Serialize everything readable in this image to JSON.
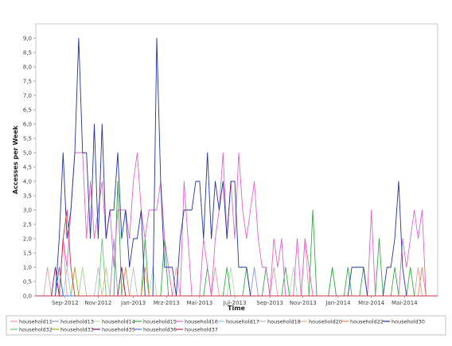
{
  "chart_data": {
    "type": "line",
    "title": "",
    "xlabel": "Time",
    "ylabel": "Accesses per Week",
    "ylim": [
      0,
      9.5
    ],
    "grid": false,
    "legend_position": "bottom",
    "y_ticks": [
      "0,0",
      "0,5",
      "1,0",
      "1,5",
      "2,0",
      "2,5",
      "3,0",
      "3,5",
      "4,0",
      "4,5",
      "5,0",
      "5,5",
      "6,0",
      "6,5",
      "7,0",
      "7,5",
      "8,0",
      "8,5",
      "9,0"
    ],
    "x_ticks": [
      {
        "label": "Sep-2012",
        "x": 2.5
      },
      {
        "label": "Nov-2012",
        "x": 11
      },
      {
        "label": "Jan-2013",
        "x": 20
      },
      {
        "label": "Mrz-2013",
        "x": 28.5
      },
      {
        "label": "Mai-2013",
        "x": 37
      },
      {
        "label": "Jul-2013",
        "x": 46
      },
      {
        "label": "Sep-2013",
        "x": 55
      },
      {
        "label": "Nov-2013",
        "x": 63.5
      },
      {
        "label": "Jan-2014",
        "x": 72.5
      },
      {
        "label": "Mrz-2014",
        "x": 81
      },
      {
        "label": "Mai-2014",
        "x": 89.5
      }
    ],
    "x_range": [
      -5,
      98
    ],
    "series": [
      {
        "name": "household11",
        "color": "#e89aa6",
        "points": [
          [
            -5,
            0
          ],
          [
            -3,
            0
          ],
          [
            -2,
            1
          ],
          [
            -1,
            0
          ],
          [
            1,
            0
          ],
          [
            2,
            2
          ],
          [
            3,
            0
          ],
          [
            6,
            0
          ],
          [
            7,
            1
          ],
          [
            8,
            0
          ],
          [
            30,
            0
          ],
          [
            31,
            1
          ],
          [
            32,
            0
          ],
          [
            40,
            0
          ],
          [
            41,
            1
          ],
          [
            42,
            0
          ],
          [
            55,
            0
          ],
          [
            56,
            1
          ],
          [
            57,
            0
          ],
          [
            63,
            0
          ],
          [
            64,
            2
          ],
          [
            65,
            0
          ],
          [
            92,
            0
          ],
          [
            93,
            1
          ],
          [
            94,
            0
          ],
          [
            98,
            0
          ]
        ]
      },
      {
        "name": "household13",
        "color": "#8899cc",
        "points": [
          [
            -5,
            0
          ],
          [
            0,
            0
          ],
          [
            1,
            1
          ],
          [
            2,
            0
          ],
          [
            14,
            0
          ],
          [
            15,
            2
          ],
          [
            16,
            0
          ],
          [
            50,
            0
          ],
          [
            51,
            1
          ],
          [
            52,
            0
          ],
          [
            98,
            0
          ]
        ]
      },
      {
        "name": "household14",
        "color": "#aaddaa",
        "points": [
          [
            -5,
            0
          ],
          [
            6,
            0
          ],
          [
            7,
            1
          ],
          [
            8,
            0
          ],
          [
            24,
            0
          ],
          [
            25,
            1
          ],
          [
            26,
            0
          ],
          [
            44,
            0
          ],
          [
            45,
            1
          ],
          [
            46,
            0
          ],
          [
            60,
            0
          ],
          [
            61,
            1
          ],
          [
            62,
            0
          ],
          [
            70,
            0
          ],
          [
            71,
            1
          ],
          [
            72,
            0
          ],
          [
            98,
            0
          ]
        ]
      },
      {
        "name": "household15",
        "color": "#33aa44",
        "points": [
          [
            -5,
            0
          ],
          [
            15,
            0
          ],
          [
            16,
            4
          ],
          [
            17,
            0
          ],
          [
            22,
            0
          ],
          [
            23,
            2
          ],
          [
            24,
            0
          ],
          [
            27,
            0
          ],
          [
            28,
            2
          ],
          [
            29,
            0
          ],
          [
            38,
            0
          ],
          [
            39,
            1
          ],
          [
            40,
            0
          ],
          [
            43,
            0
          ],
          [
            44,
            1
          ],
          [
            45,
            0
          ],
          [
            48,
            0
          ],
          [
            49,
            1
          ],
          [
            50,
            0
          ],
          [
            53,
            0
          ],
          [
            54,
            1
          ],
          [
            55,
            0
          ],
          [
            58,
            0
          ],
          [
            59,
            1
          ],
          [
            60,
            0
          ],
          [
            65,
            0
          ],
          [
            66,
            3
          ],
          [
            67,
            0
          ],
          [
            70,
            0
          ],
          [
            71,
            1
          ],
          [
            72,
            0
          ],
          [
            74,
            0
          ],
          [
            75,
            1
          ],
          [
            76,
            0
          ],
          [
            78,
            0
          ],
          [
            79,
            1
          ],
          [
            80,
            0
          ],
          [
            82,
            0
          ],
          [
            83,
            2
          ],
          [
            84,
            0
          ],
          [
            86,
            0
          ],
          [
            87,
            1
          ],
          [
            88,
            0
          ],
          [
            90,
            0
          ],
          [
            91,
            1
          ],
          [
            92,
            0
          ],
          [
            98,
            0
          ]
        ]
      },
      {
        "name": "household16",
        "color": "#dd66cc",
        "points": [
          [
            -5,
            0
          ],
          [
            1,
            0
          ],
          [
            2,
            2
          ],
          [
            3,
            1
          ],
          [
            4,
            3
          ],
          [
            5,
            5
          ],
          [
            6,
            5
          ],
          [
            7,
            5
          ],
          [
            8,
            2
          ],
          [
            9,
            4
          ],
          [
            10,
            2
          ],
          [
            11,
            3
          ],
          [
            12,
            4
          ],
          [
            13,
            2
          ],
          [
            14,
            3
          ],
          [
            15,
            1
          ],
          [
            16,
            3
          ],
          [
            17,
            3
          ],
          [
            18,
            3
          ],
          [
            19,
            2
          ],
          [
            20,
            4
          ],
          [
            21,
            5
          ],
          [
            22,
            3
          ],
          [
            23,
            2
          ],
          [
            24,
            3
          ],
          [
            25,
            3
          ],
          [
            26,
            3
          ],
          [
            27,
            4
          ],
          [
            28,
            2
          ],
          [
            29,
            1
          ],
          [
            30,
            0
          ],
          [
            32,
            0
          ],
          [
            33,
            4
          ],
          [
            34,
            2
          ],
          [
            35,
            0
          ],
          [
            37,
            0
          ],
          [
            38,
            2
          ],
          [
            39,
            1
          ],
          [
            40,
            0
          ],
          [
            41,
            2
          ],
          [
            42,
            3
          ],
          [
            43,
            5
          ],
          [
            44,
            2
          ],
          [
            45,
            4
          ],
          [
            46,
            2
          ],
          [
            47,
            5
          ],
          [
            48,
            3
          ],
          [
            49,
            2
          ],
          [
            50,
            3
          ],
          [
            51,
            4
          ],
          [
            52,
            2
          ],
          [
            53,
            1
          ],
          [
            54,
            1
          ],
          [
            55,
            0
          ],
          [
            56,
            2
          ],
          [
            57,
            1
          ],
          [
            58,
            2
          ],
          [
            59,
            0
          ],
          [
            61,
            0
          ],
          [
            62,
            2
          ],
          [
            63,
            0
          ],
          [
            64,
            2
          ],
          [
            65,
            1
          ],
          [
            66,
            0
          ],
          [
            80,
            0
          ],
          [
            81,
            3
          ],
          [
            82,
            0
          ],
          [
            88,
            0
          ],
          [
            89,
            2
          ],
          [
            90,
            1
          ],
          [
            91,
            2
          ],
          [
            92,
            3
          ],
          [
            93,
            2
          ],
          [
            94,
            3
          ],
          [
            95,
            0
          ],
          [
            98,
            0
          ]
        ]
      },
      {
        "name": "household17",
        "color": "#99ccdd",
        "points": [
          [
            -5,
            0
          ],
          [
            2,
            0
          ],
          [
            3,
            1
          ],
          [
            4,
            0
          ],
          [
            98,
            0
          ]
        ]
      },
      {
        "name": "household18",
        "color": "#bbbbbb",
        "points": [
          [
            -5,
            0
          ],
          [
            10,
            0
          ],
          [
            11,
            1
          ],
          [
            12,
            0
          ],
          [
            19,
            0
          ],
          [
            20,
            1
          ],
          [
            21,
            0
          ],
          [
            98,
            0
          ]
        ]
      },
      {
        "name": "household20",
        "color": "#ddbb88",
        "points": [
          [
            -5,
            0
          ],
          [
            12,
            0
          ],
          [
            13,
            1
          ],
          [
            14,
            0
          ],
          [
            98,
            0
          ]
        ]
      },
      {
        "name": "household22",
        "color": "#dd8855",
        "points": [
          [
            -5,
            0
          ],
          [
            17,
            0
          ],
          [
            18,
            1
          ],
          [
            19,
            0
          ],
          [
            22,
            0
          ],
          [
            23,
            1
          ],
          [
            24,
            0
          ],
          [
            93,
            0
          ],
          [
            94,
            1
          ],
          [
            95,
            0
          ],
          [
            98,
            0
          ]
        ]
      },
      {
        "name": "household30",
        "color": "#223399",
        "points": [
          [
            -5,
            0
          ],
          [
            0,
            0
          ],
          [
            1,
            2
          ],
          [
            2,
            5
          ],
          [
            3,
            2
          ],
          [
            4,
            3
          ],
          [
            5,
            5
          ],
          [
            6,
            9
          ],
          [
            7,
            5
          ],
          [
            8,
            5
          ],
          [
            9,
            2
          ],
          [
            10,
            6
          ],
          [
            11,
            2
          ],
          [
            12,
            6
          ],
          [
            13,
            2
          ],
          [
            14,
            3
          ],
          [
            15,
            3
          ],
          [
            16,
            5
          ],
          [
            17,
            2
          ],
          [
            18,
            3
          ],
          [
            19,
            1
          ],
          [
            20,
            2
          ],
          [
            21,
            2
          ],
          [
            22,
            3
          ],
          [
            23,
            0
          ],
          [
            25,
            0
          ],
          [
            26,
            9
          ],
          [
            27,
            4
          ],
          [
            28,
            1
          ],
          [
            29,
            1
          ],
          [
            30,
            1
          ],
          [
            31,
            0
          ],
          [
            32,
            2
          ],
          [
            33,
            3
          ],
          [
            34,
            3
          ],
          [
            35,
            3
          ],
          [
            36,
            4
          ],
          [
            37,
            4
          ],
          [
            38,
            2
          ],
          [
            39,
            5
          ],
          [
            40,
            2
          ],
          [
            41,
            4
          ],
          [
            42,
            3
          ],
          [
            43,
            4
          ],
          [
            44,
            2
          ],
          [
            45,
            4
          ],
          [
            46,
            4
          ],
          [
            47,
            1
          ],
          [
            48,
            1
          ],
          [
            49,
            1
          ],
          [
            50,
            0
          ],
          [
            75,
            0
          ],
          [
            76,
            1
          ],
          [
            77,
            1
          ],
          [
            78,
            1
          ],
          [
            79,
            1
          ],
          [
            80,
            0
          ],
          [
            84,
            0
          ],
          [
            85,
            1
          ],
          [
            86,
            1
          ],
          [
            87,
            2
          ],
          [
            88,
            4
          ],
          [
            89,
            1
          ],
          [
            90,
            0
          ],
          [
            98,
            0
          ]
        ]
      },
      {
        "name": "household32",
        "color": "#66cc77",
        "points": [
          [
            -5,
            0
          ],
          [
            11,
            0
          ],
          [
            12,
            2
          ],
          [
            13,
            0
          ],
          [
            98,
            0
          ]
        ]
      },
      {
        "name": "household33",
        "color": "#99aa22",
        "points": [
          [
            -5,
            0
          ],
          [
            4,
            0
          ],
          [
            5,
            1
          ],
          [
            6,
            0
          ],
          [
            98,
            0
          ]
        ]
      },
      {
        "name": "household35",
        "color": "#771166",
        "points": [
          [
            -5,
            0
          ],
          [
            -1,
            0
          ],
          [
            0,
            1
          ],
          [
            1,
            0
          ],
          [
            16,
            0
          ],
          [
            17,
            1
          ],
          [
            18,
            0
          ],
          [
            98,
            0
          ]
        ]
      },
      {
        "name": "household36",
        "color": "#4477dd",
        "points": [
          [
            -5,
            0
          ],
          [
            0,
            0
          ],
          [
            1,
            1
          ],
          [
            2,
            0
          ],
          [
            98,
            0
          ]
        ]
      },
      {
        "name": "household37",
        "color": "#cc3344",
        "points": [
          [
            -5,
            0
          ],
          [
            1,
            0
          ],
          [
            2,
            2
          ],
          [
            3,
            3
          ],
          [
            4,
            1
          ],
          [
            5,
            0
          ],
          [
            98,
            0
          ]
        ]
      }
    ]
  }
}
